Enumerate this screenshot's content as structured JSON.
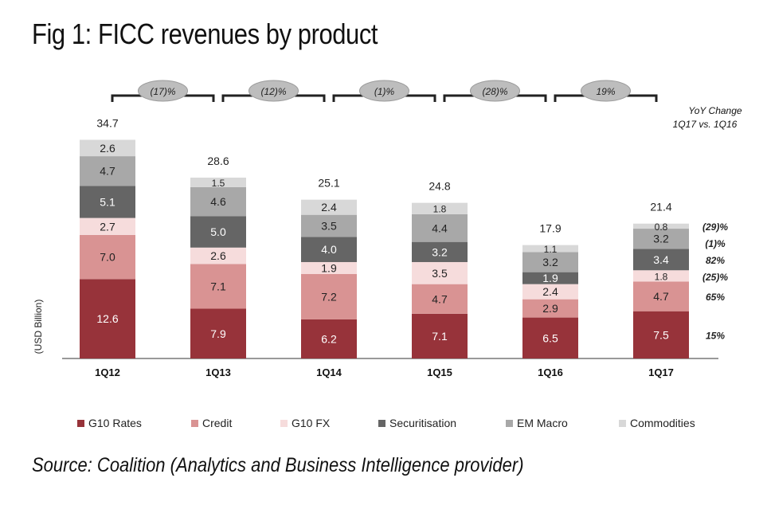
{
  "title": "Fig 1: FICC revenues by product",
  "source": "Source: Coalition (Analytics and Business Intelligence provider)",
  "colors": {
    "G10 Rates": "#97333a",
    "Credit": "#d99393",
    "G10 FX": "#f6dcdc",
    "Securitisation": "#656565",
    "EM Macro": "#a8a8a8",
    "Commodities": "#d8d8d8"
  },
  "chart_data": {
    "type": "bar",
    "stacked": true,
    "ylabel": "(USD Billion)",
    "categories": [
      "1Q12",
      "1Q13",
      "1Q14",
      "1Q15",
      "1Q16",
      "1Q17"
    ],
    "series": [
      {
        "name": "G10 Rates",
        "values": [
          12.6,
          7.9,
          6.2,
          7.1,
          6.5,
          7.5
        ]
      },
      {
        "name": "Credit",
        "values": [
          7.0,
          7.1,
          7.2,
          4.7,
          2.9,
          4.7
        ]
      },
      {
        "name": "G10 FX",
        "values": [
          2.7,
          2.6,
          1.9,
          3.5,
          2.4,
          1.8
        ]
      },
      {
        "name": "Securitisation",
        "values": [
          5.1,
          5.0,
          4.0,
          3.2,
          1.9,
          3.4
        ]
      },
      {
        "name": "EM Macro",
        "values": [
          4.7,
          4.6,
          3.5,
          4.4,
          3.2,
          3.2
        ]
      },
      {
        "name": "Commodities",
        "values": [
          2.6,
          1.5,
          2.4,
          1.8,
          1.1,
          0.8
        ]
      }
    ],
    "segment_labels": [
      [
        "12.6",
        "7.0",
        "2.7",
        "5.1",
        "4.7",
        "2.6"
      ],
      [
        "7.9",
        "7.1",
        "2.6",
        "5.0",
        "4.6",
        "1.5"
      ],
      [
        "6.2",
        "7.2",
        "1.9",
        "4.0",
        "3.5",
        "2.4"
      ],
      [
        "7.1",
        "4.7",
        "3.5",
        "3.2",
        "4.4",
        "1.8"
      ],
      [
        "6.5",
        "2.9",
        "2.4",
        "1.9",
        "3.2",
        "1.1"
      ],
      [
        "7.5",
        "4.7",
        "1.8",
        "3.4",
        "3.2",
        "0.8"
      ]
    ],
    "totals": [
      "34.7",
      "28.6",
      "25.1",
      "24.8",
      "17.9",
      "21.4"
    ],
    "ylim": [
      0,
      36
    ],
    "grid": false,
    "legend": "bottom",
    "period_changes": [
      "(17)%",
      "(12)%",
      "(1)%",
      "(28)%",
      "19%"
    ],
    "yoy_title": [
      "YoY Change",
      "1Q17 vs. 1Q16"
    ],
    "yoy_changes": [
      {
        "series": "Commodities",
        "value": "(29)%"
      },
      {
        "series": "EM Macro",
        "value": "(1)%"
      },
      {
        "series": "Securitisation",
        "value": "82%"
      },
      {
        "series": "G10 FX",
        "value": "(25)%"
      },
      {
        "series": "Credit",
        "value": "65%"
      },
      {
        "series": "G10 Rates",
        "value": "15%"
      }
    ]
  }
}
